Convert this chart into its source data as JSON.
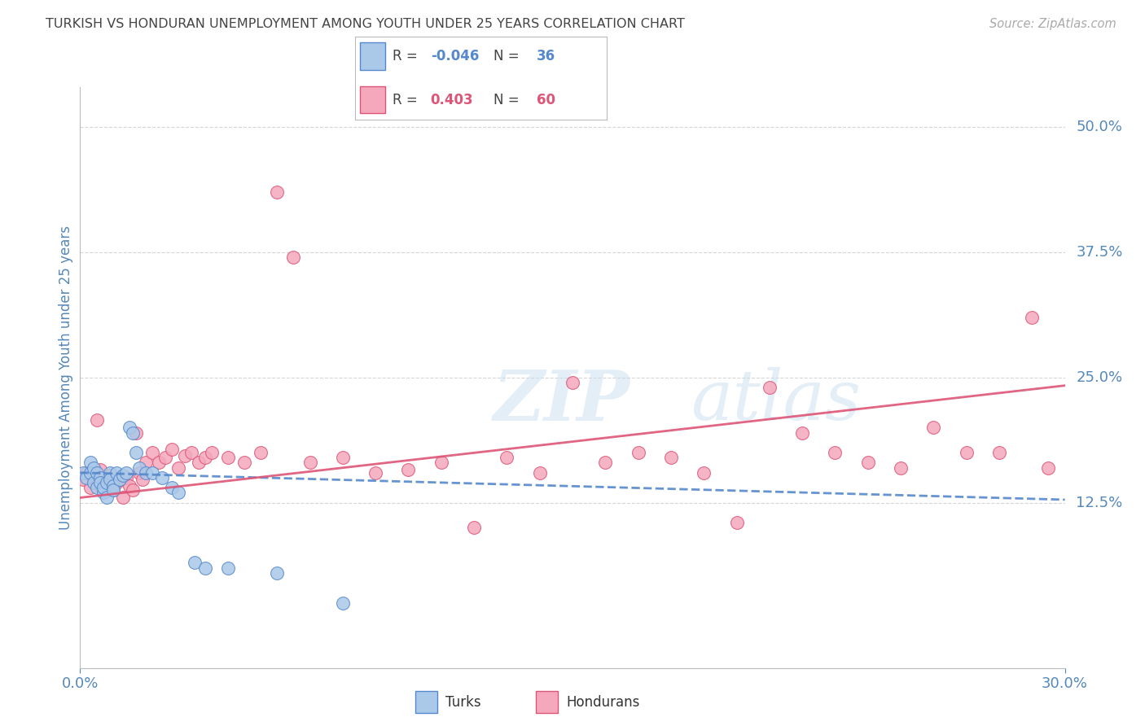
{
  "title": "TURKISH VS HONDURAN UNEMPLOYMENT AMONG YOUTH UNDER 25 YEARS CORRELATION CHART",
  "source": "Source: ZipAtlas.com",
  "ylabel": "Unemployment Among Youth under 25 years",
  "ytick_labels": [
    "50.0%",
    "37.5%",
    "25.0%",
    "12.5%"
  ],
  "ytick_values": [
    0.5,
    0.375,
    0.25,
    0.125
  ],
  "xlim": [
    0.0,
    0.3
  ],
  "ylim": [
    -0.04,
    0.54
  ],
  "turks_R": "-0.046",
  "turks_N": "36",
  "hondurans_R": "0.403",
  "hondurans_N": "60",
  "turks_color": "#aac8e8",
  "hondurans_color": "#f5a8bc",
  "trend_turks_color": "#5588cc",
  "trend_hondurans_color": "#dd5577",
  "background_color": "#ffffff",
  "watermark_text": "ZIPatlas",
  "watermark_color": "#ddeeff",
  "grid_color": "#cccccc",
  "title_color": "#444444",
  "axis_label_color": "#5588bb",
  "turks_x": [
    0.001,
    0.002,
    0.003,
    0.003,
    0.004,
    0.004,
    0.005,
    0.005,
    0.006,
    0.006,
    0.007,
    0.007,
    0.008,
    0.008,
    0.009,
    0.009,
    0.01,
    0.01,
    0.011,
    0.012,
    0.013,
    0.014,
    0.015,
    0.016,
    0.017,
    0.018,
    0.02,
    0.022,
    0.025,
    0.028,
    0.03,
    0.035,
    0.038,
    0.045,
    0.06,
    0.08
  ],
  "turks_y": [
    0.155,
    0.15,
    0.165,
    0.155,
    0.16,
    0.145,
    0.14,
    0.155,
    0.15,
    0.145,
    0.135,
    0.14,
    0.13,
    0.145,
    0.155,
    0.148,
    0.142,
    0.138,
    0.155,
    0.148,
    0.152,
    0.155,
    0.2,
    0.195,
    0.175,
    0.16,
    0.155,
    0.155,
    0.15,
    0.14,
    0.135,
    0.065,
    0.06,
    0.06,
    0.055,
    0.025
  ],
  "hondurans_x": [
    0.001,
    0.002,
    0.003,
    0.004,
    0.005,
    0.005,
    0.006,
    0.007,
    0.008,
    0.009,
    0.01,
    0.011,
    0.012,
    0.013,
    0.014,
    0.015,
    0.016,
    0.017,
    0.018,
    0.019,
    0.02,
    0.022,
    0.024,
    0.026,
    0.028,
    0.03,
    0.032,
    0.034,
    0.036,
    0.038,
    0.04,
    0.045,
    0.05,
    0.055,
    0.06,
    0.065,
    0.07,
    0.08,
    0.09,
    0.1,
    0.11,
    0.12,
    0.13,
    0.14,
    0.15,
    0.16,
    0.17,
    0.18,
    0.19,
    0.2,
    0.21,
    0.22,
    0.23,
    0.24,
    0.25,
    0.26,
    0.27,
    0.28,
    0.29,
    0.295
  ],
  "hondurans_y": [
    0.148,
    0.155,
    0.14,
    0.15,
    0.145,
    0.208,
    0.158,
    0.148,
    0.145,
    0.152,
    0.138,
    0.145,
    0.148,
    0.13,
    0.15,
    0.142,
    0.138,
    0.195,
    0.155,
    0.148,
    0.165,
    0.175,
    0.165,
    0.17,
    0.178,
    0.16,
    0.172,
    0.175,
    0.165,
    0.17,
    0.175,
    0.17,
    0.165,
    0.175,
    0.435,
    0.37,
    0.165,
    0.17,
    0.155,
    0.158,
    0.165,
    0.1,
    0.17,
    0.155,
    0.245,
    0.165,
    0.175,
    0.17,
    0.155,
    0.105,
    0.24,
    0.195,
    0.175,
    0.165,
    0.16,
    0.2,
    0.175,
    0.175,
    0.31,
    0.16
  ]
}
